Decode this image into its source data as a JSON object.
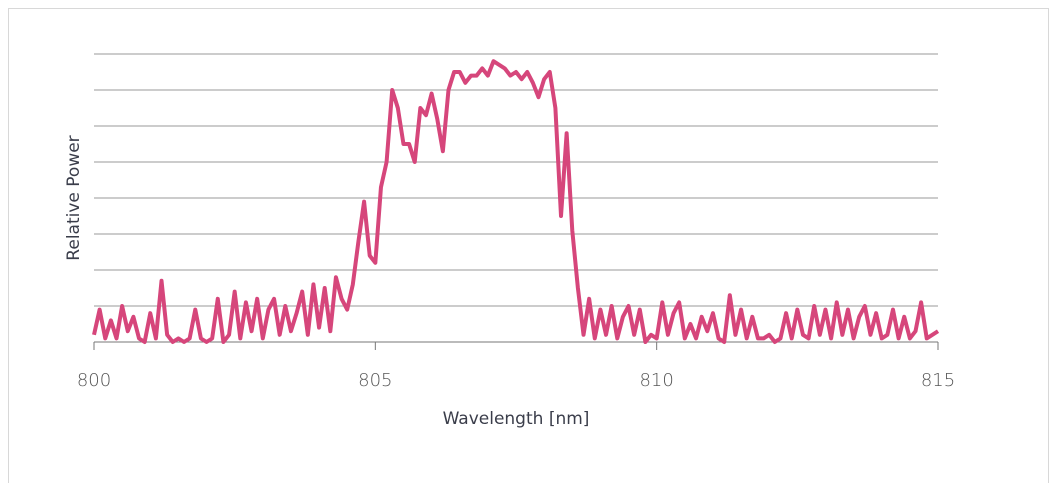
{
  "chart_data": {
    "type": "line",
    "xlabel": "Wavelength [nm]",
    "ylabel": "Relative Power",
    "x": [
      800.0,
      800.1,
      800.2,
      800.3,
      800.4,
      800.5,
      800.6,
      800.7,
      800.8,
      800.9,
      801.0,
      801.1,
      801.2,
      801.3,
      801.4,
      801.5,
      801.6,
      801.7,
      801.8,
      801.9,
      802.0,
      802.1,
      802.2,
      802.3,
      802.4,
      802.5,
      802.6,
      802.7,
      802.8,
      802.9,
      803.0,
      803.1,
      803.2,
      803.3,
      803.4,
      803.5,
      803.6,
      803.7,
      803.8,
      803.9,
      804.0,
      804.1,
      804.2,
      804.3,
      804.4,
      804.5,
      804.6,
      804.7,
      804.8,
      804.9,
      805.0,
      805.1,
      805.2,
      805.3,
      805.4,
      805.5,
      805.6,
      805.7,
      805.8,
      805.9,
      806.0,
      806.1,
      806.2,
      806.3,
      806.4,
      806.5,
      806.6,
      806.7,
      806.8,
      806.9,
      807.0,
      807.1,
      807.2,
      807.3,
      807.4,
      807.5,
      807.6,
      807.7,
      807.8,
      807.9,
      808.0,
      808.1,
      808.2,
      808.3,
      808.4,
      808.5,
      808.6,
      808.7,
      808.8,
      808.9,
      809.0,
      809.1,
      809.2,
      809.3,
      809.4,
      809.5,
      809.6,
      809.7,
      809.8,
      809.9,
      810.0,
      810.1,
      810.2,
      810.3,
      810.4,
      810.5,
      810.6,
      810.7,
      810.8,
      810.9,
      811.0,
      811.1,
      811.2,
      811.3,
      811.4,
      811.5,
      811.6,
      811.7,
      811.8,
      811.9,
      812.0,
      812.1,
      812.2,
      812.3,
      812.4,
      812.5,
      812.6,
      812.7,
      812.8,
      812.9,
      813.0,
      813.1,
      813.2,
      813.3,
      813.4,
      813.5,
      813.6,
      813.7,
      813.8,
      813.9,
      814.0,
      814.1,
      814.2,
      814.3,
      814.4,
      814.5,
      814.6,
      814.7,
      814.8,
      814.9,
      815.0
    ],
    "series": [
      {
        "color": "#d6467b",
        "values": [
          0.2,
          0.9,
          0.1,
          0.6,
          0.1,
          1.0,
          0.3,
          0.7,
          0.1,
          0.0,
          0.8,
          0.1,
          1.7,
          0.2,
          0.0,
          0.1,
          0.0,
          0.1,
          0.9,
          0.1,
          0.0,
          0.1,
          1.2,
          0.0,
          0.2,
          1.4,
          0.1,
          1.1,
          0.3,
          1.2,
          0.1,
          0.9,
          1.2,
          0.2,
          1.0,
          0.3,
          0.8,
          1.4,
          0.2,
          1.6,
          0.4,
          1.5,
          0.3,
          1.8,
          1.2,
          0.9,
          1.6,
          2.8,
          3.9,
          2.4,
          2.2,
          4.3,
          5.0,
          7.0,
          6.5,
          5.5,
          5.5,
          5.0,
          6.5,
          6.3,
          6.9,
          6.2,
          5.3,
          7.0,
          7.5,
          7.5,
          7.2,
          7.4,
          7.4,
          7.6,
          7.4,
          7.8,
          7.7,
          7.6,
          7.4,
          7.5,
          7.3,
          7.5,
          7.2,
          6.8,
          7.3,
          7.5,
          6.5,
          3.5,
          5.8,
          3.1,
          1.5,
          0.2,
          1.2,
          0.1,
          0.9,
          0.2,
          1.0,
          0.1,
          0.7,
          1.0,
          0.2,
          0.9,
          0.0,
          0.2,
          0.1,
          1.1,
          0.2,
          0.8,
          1.1,
          0.1,
          0.5,
          0.1,
          0.7,
          0.3,
          0.8,
          0.1,
          0.0,
          1.3,
          0.2,
          0.9,
          0.1,
          0.7,
          0.1,
          0.1,
          0.2,
          0.0,
          0.1,
          0.8,
          0.1,
          0.9,
          0.2,
          0.1,
          1.0,
          0.2,
          0.9,
          0.1,
          1.1,
          0.2,
          0.9,
          0.1,
          0.7,
          1.0,
          0.2,
          0.8,
          0.1,
          0.2,
          0.9,
          0.1,
          0.7,
          0.1,
          0.3,
          1.1,
          0.1,
          0.2,
          0.3
        ]
      }
    ],
    "xlim": [
      800,
      815
    ],
    "xticks": [
      800,
      805,
      810,
      815
    ],
    "ylim": [
      0,
      8
    ],
    "yticks": [
      0,
      1,
      2,
      3,
      4,
      5,
      6,
      7,
      8
    ],
    "grid": true
  }
}
